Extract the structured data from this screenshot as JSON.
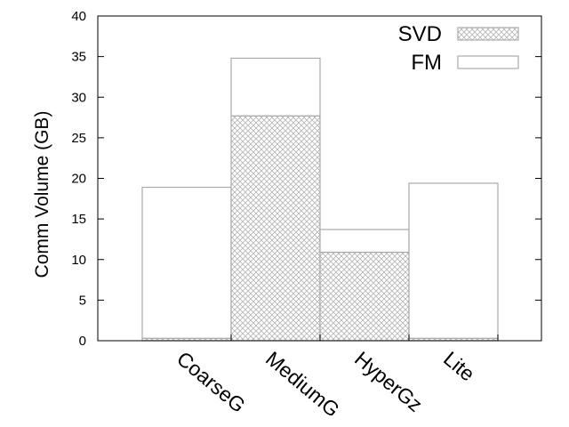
{
  "chart_data": {
    "type": "bar",
    "stacked": true,
    "categories": [
      "CoarseG",
      "MediumG",
      "HyperGz",
      "Lite"
    ],
    "series": [
      {
        "name": "SVD",
        "values": [
          0.3,
          27.7,
          10.9,
          0.3
        ],
        "fill": "crosshatch",
        "color": "#aaaaaa"
      },
      {
        "name": "FM",
        "values": [
          18.6,
          7.1,
          2.8,
          19.1
        ],
        "fill": "none",
        "color": "#aaaaaa"
      }
    ],
    "title": "",
    "xlabel": "",
    "ylabel": "Comm Volume (GB)",
    "ylim": [
      0,
      40
    ],
    "yticks": [
      0,
      5,
      10,
      15,
      20,
      25,
      30,
      35,
      40
    ],
    "grid": false,
    "legend_position": "top-right"
  }
}
